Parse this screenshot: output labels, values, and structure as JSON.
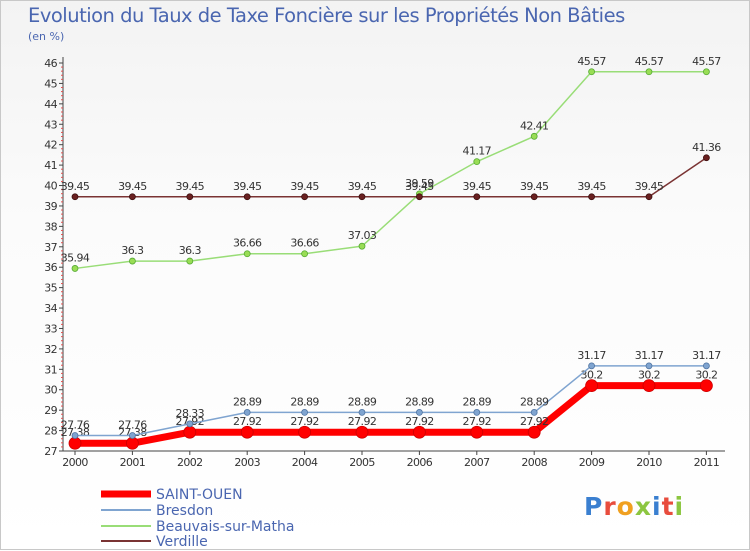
{
  "chart_data": {
    "type": "line",
    "title": "Evolution du Taux de Taxe Foncière sur les Propriétés Non Bâties",
    "ylabel": "(en %)",
    "xlabel": "",
    "categories": [
      "2000",
      "2001",
      "2002",
      "2003",
      "2004",
      "2005",
      "2006",
      "2007",
      "2008",
      "2009",
      "2010",
      "2011"
    ],
    "ylim": [
      27,
      46
    ],
    "yticks": [
      "27",
      "28",
      "29",
      "30",
      "31",
      "32",
      "33",
      "34",
      "35",
      "36",
      "37",
      "38",
      "39",
      "40",
      "41",
      "42",
      "43",
      "44",
      "45",
      "46"
    ],
    "grid": false,
    "legend": "bottom-left",
    "series": [
      {
        "name": "SAINT-OUEN",
        "color": "#ff0000",
        "values": [
          27.38,
          27.38,
          27.92,
          27.92,
          27.92,
          27.92,
          27.92,
          27.92,
          27.92,
          30.2,
          30.2,
          30.2
        ],
        "labels": [
          "27.38",
          "27.38",
          "27.92",
          "27.92",
          "27.92",
          "27.92",
          "27.92",
          "27.92",
          "27.92",
          "30.2",
          "30.2",
          "30.2"
        ]
      },
      {
        "name": "Bresdon",
        "color": "#7fa4d0",
        "values": [
          27.76,
          27.76,
          28.33,
          28.89,
          28.89,
          28.89,
          28.89,
          28.89,
          28.89,
          31.17,
          31.17,
          31.17
        ],
        "labels": [
          "27.76",
          "27.76",
          "28.33",
          "28.89",
          "28.89",
          "28.89",
          "28.89",
          "28.89",
          "28.89",
          "31.17",
          "31.17",
          "31.17"
        ]
      },
      {
        "name": "Beauvais-sur-Matha",
        "color": "#99dd77",
        "values": [
          35.94,
          36.3,
          36.3,
          36.66,
          36.66,
          37.03,
          39.59,
          41.17,
          42.41,
          45.57,
          45.57,
          45.57
        ],
        "labels": [
          "35.94",
          "36.3",
          "36.3",
          "36.66",
          "36.66",
          "37.03",
          "39.59",
          "41.17",
          "42.41",
          "45.57",
          "45.57",
          "45.57"
        ]
      },
      {
        "name": "Verdille",
        "color": "#7a3333",
        "values": [
          39.45,
          39.45,
          39.45,
          39.45,
          39.45,
          39.45,
          39.45,
          39.45,
          39.45,
          39.45,
          39.45,
          41.36
        ],
        "labels": [
          "39.45",
          "39.45",
          "39.45",
          "39.45",
          "39.45",
          "39.45",
          "39.45",
          "39.45",
          "39.45",
          "39.45",
          "39.45",
          "41.36"
        ]
      }
    ]
  },
  "logo": {
    "text": "Proxiti",
    "letters": [
      "P",
      "r",
      "o",
      "x",
      "i",
      "t",
      "i"
    ]
  }
}
